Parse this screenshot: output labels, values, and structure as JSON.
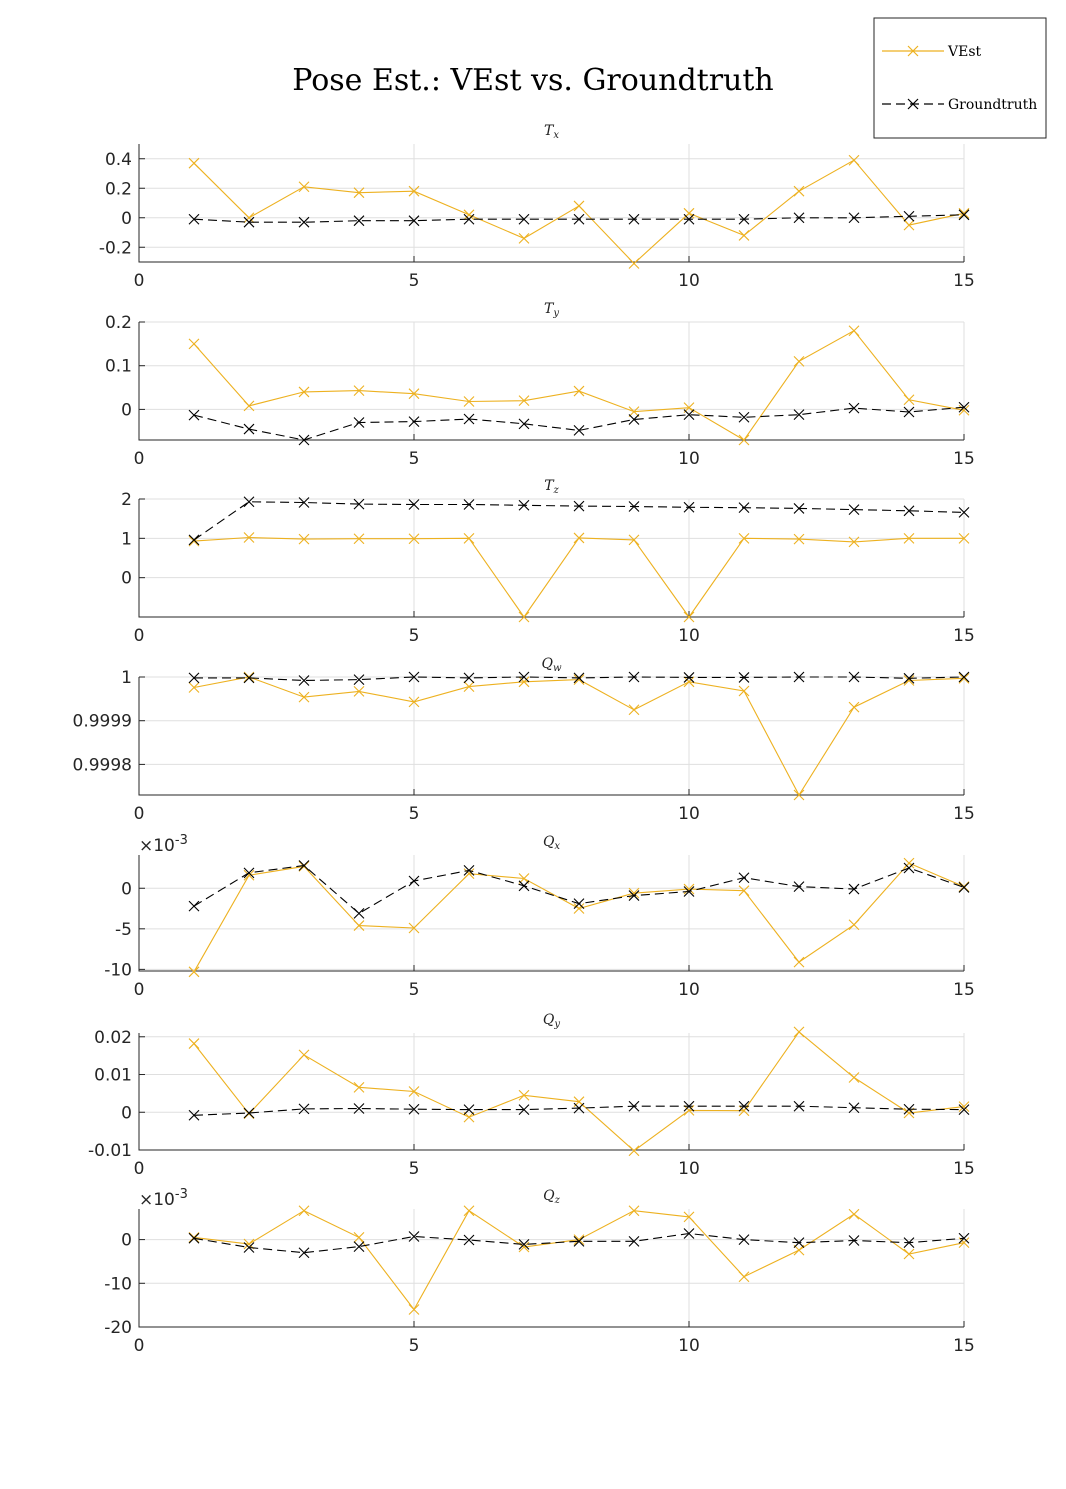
{
  "title": "Pose Est.: VEst vs. Groundtruth",
  "legend": {
    "entries": [
      {
        "label": "VEst",
        "color": "#EDB120",
        "style": "solid"
      },
      {
        "label": "Groundtruth",
        "color": "#000000",
        "style": "dashed"
      }
    ],
    "placement": "top-right"
  },
  "chart_data": [
    {
      "type": "line",
      "title": "T_x",
      "xlim": [
        0,
        15
      ],
      "ylim": [
        -0.3,
        0.5
      ],
      "xticks": [
        0,
        5,
        10,
        15
      ],
      "yticks": [
        -0.2,
        0,
        0.2,
        0.4
      ],
      "yticklabels": [
        "-0.2",
        "0",
        "0.2",
        "0.4"
      ],
      "exponent": "",
      "grid": true,
      "x": [
        1,
        2,
        3,
        4,
        5,
        6,
        7,
        8,
        9,
        10,
        11,
        12,
        13,
        14,
        15
      ],
      "series": [
        {
          "name": "VEst",
          "values": [
            0.37,
            0.0,
            0.21,
            0.17,
            0.18,
            0.02,
            -0.14,
            0.08,
            -0.31,
            0.03,
            -0.12,
            0.18,
            0.39,
            -0.05,
            0.03
          ]
        },
        {
          "name": "Groundtruth",
          "values": [
            -0.01,
            -0.03,
            -0.03,
            -0.02,
            -0.02,
            -0.01,
            -0.01,
            -0.01,
            -0.01,
            -0.01,
            -0.01,
            0.0,
            0.0,
            0.01,
            0.02
          ]
        }
      ]
    },
    {
      "type": "line",
      "title": "T_y",
      "xlim": [
        0,
        15
      ],
      "ylim": [
        -0.07,
        0.2
      ],
      "xticks": [
        0,
        5,
        10,
        15
      ],
      "yticks": [
        0,
        0.1,
        0.2
      ],
      "yticklabels": [
        "0",
        "0.1",
        "0.2"
      ],
      "exponent": "",
      "grid": true,
      "x": [
        1,
        2,
        3,
        4,
        5,
        6,
        7,
        8,
        9,
        10,
        11,
        12,
        13,
        14,
        15
      ],
      "series": [
        {
          "name": "VEst",
          "values": [
            0.15,
            0.008,
            0.04,
            0.043,
            0.036,
            0.018,
            0.02,
            0.042,
            -0.005,
            0.004,
            -0.07,
            0.11,
            0.18,
            0.022,
            -0.002
          ]
        },
        {
          "name": "Groundtruth",
          "values": [
            -0.013,
            -0.045,
            -0.07,
            -0.03,
            -0.028,
            -0.022,
            -0.033,
            -0.048,
            -0.023,
            -0.012,
            -0.018,
            -0.012,
            0.003,
            -0.006,
            0.005
          ]
        }
      ]
    },
    {
      "type": "line",
      "title": "T_z",
      "xlim": [
        0,
        15
      ],
      "ylim": [
        -1,
        2
      ],
      "xticks": [
        0,
        5,
        10,
        15
      ],
      "yticks": [
        0,
        1,
        2
      ],
      "yticklabels": [
        "0",
        "1",
        "2"
      ],
      "exponent": "",
      "grid": true,
      "x": [
        1,
        2,
        3,
        4,
        5,
        6,
        7,
        8,
        9,
        10,
        11,
        12,
        13,
        14,
        15
      ],
      "series": [
        {
          "name": "VEst",
          "values": [
            0.93,
            1.02,
            0.98,
            0.99,
            0.99,
            1.0,
            -1.0,
            1.01,
            0.96,
            -1.0,
            1.0,
            0.98,
            0.91,
            1.0,
            1.0
          ]
        },
        {
          "name": "Groundtruth",
          "values": [
            0.96,
            1.93,
            1.91,
            1.87,
            1.86,
            1.86,
            1.84,
            1.82,
            1.81,
            1.79,
            1.78,
            1.76,
            1.73,
            1.7,
            1.66
          ]
        }
      ]
    },
    {
      "type": "line",
      "title": "Q_w",
      "xlim": [
        0,
        15
      ],
      "ylim": [
        0.99973,
        1.0
      ],
      "xticks": [
        0,
        5,
        10,
        15
      ],
      "yticks": [
        0.9998,
        0.9999,
        1.0
      ],
      "yticklabels": [
        "0.9998",
        "0.9999",
        "1"
      ],
      "exponent": "",
      "grid": true,
      "x": [
        1,
        2,
        3,
        4,
        5,
        6,
        7,
        8,
        9,
        10,
        11,
        12,
        13,
        14,
        15
      ],
      "series": [
        {
          "name": "VEst",
          "values": [
            0.999976,
            1.0,
            0.999954,
            0.999967,
            0.999943,
            0.999978,
            0.999989,
            0.999994,
            0.999925,
            0.999989,
            0.999968,
            0.99973,
            0.999931,
            0.999992,
            0.999997
          ]
        },
        {
          "name": "Groundtruth",
          "values": [
            0.999998,
            0.999998,
            0.999992,
            0.999994,
            1.0,
            0.999998,
            1.0,
            0.999998,
            1.0,
            0.999999,
            0.999999,
            1.0,
            1.0,
            0.999997,
            1.0
          ]
        }
      ]
    },
    {
      "type": "line",
      "title": "Q_x",
      "xlim": [
        0,
        15
      ],
      "ylim": [
        -10.2,
        4.1
      ],
      "xticks": [
        0,
        5,
        10,
        15
      ],
      "yticks": [
        -10,
        -5,
        0
      ],
      "yticklabels": [
        "-10",
        "-5",
        "0"
      ],
      "exponent": "×10",
      "exponent_power": "-3",
      "grid": true,
      "x": [
        1,
        2,
        3,
        4,
        5,
        6,
        7,
        8,
        9,
        10,
        11,
        12,
        13,
        14,
        15
      ],
      "series": [
        {
          "name": "VEst",
          "values": [
            -10.3,
            1.6,
            2.7,
            -4.6,
            -4.9,
            1.8,
            1.2,
            -2.5,
            -0.6,
            -0.1,
            -0.3,
            -9.1,
            -4.5,
            3.1,
            0.2
          ]
        },
        {
          "name": "Groundtruth",
          "values": [
            -2.2,
            1.9,
            2.8,
            -3.1,
            0.9,
            2.2,
            0.3,
            -1.9,
            -0.9,
            -0.4,
            1.3,
            0.2,
            -0.1,
            2.5,
            0.1
          ]
        }
      ]
    },
    {
      "type": "line",
      "title": "Q_y",
      "xlim": [
        0,
        15
      ],
      "ylim": [
        -0.01,
        0.021
      ],
      "xticks": [
        0,
        5,
        10,
        15
      ],
      "yticks": [
        -0.01,
        0,
        0.01,
        0.02
      ],
      "yticklabels": [
        "-0.01",
        "0",
        "0.01",
        "0.02"
      ],
      "exponent": "",
      "grid": true,
      "x": [
        1,
        2,
        3,
        4,
        5,
        6,
        7,
        8,
        9,
        10,
        11,
        12,
        13,
        14,
        15
      ],
      "series": [
        {
          "name": "VEst",
          "values": [
            0.0182,
            -0.0004,
            0.0152,
            0.0066,
            0.0055,
            -0.0013,
            0.0045,
            0.0028,
            -0.0102,
            0.0005,
            0.0004,
            0.0213,
            0.0092,
            -0.0002,
            0.0015
          ]
        },
        {
          "name": "Groundtruth",
          "values": [
            -0.0008,
            -0.0002,
            0.0009,
            0.001,
            0.0008,
            0.0007,
            0.0007,
            0.0011,
            0.0016,
            0.0016,
            0.0016,
            0.0016,
            0.0012,
            0.0008,
            0.0007
          ]
        }
      ]
    },
    {
      "type": "line",
      "title": "Q_z",
      "xlim": [
        0,
        15
      ],
      "ylim": [
        -20,
        7
      ],
      "xticks": [
        0,
        5,
        10,
        15
      ],
      "yticks": [
        -20,
        -10,
        0
      ],
      "yticklabels": [
        "-20",
        "-10",
        "0"
      ],
      "exponent": "×10",
      "exponent_power": "-3",
      "grid": true,
      "x": [
        1,
        2,
        3,
        4,
        5,
        6,
        7,
        8,
        9,
        10,
        11,
        12,
        13,
        14,
        15
      ],
      "series": [
        {
          "name": "VEst",
          "values": [
            0.5,
            -1.0,
            6.6,
            0.5,
            -16.0,
            6.6,
            -1.7,
            0.0,
            6.6,
            5.2,
            -8.5,
            -2.4,
            5.8,
            -3.3,
            -0.7
          ]
        },
        {
          "name": "Groundtruth",
          "values": [
            0.3,
            -1.8,
            -3.0,
            -1.6,
            0.7,
            -0.1,
            -1.1,
            -0.4,
            -0.4,
            1.4,
            0.0,
            -0.7,
            -0.2,
            -0.7,
            0.3
          ]
        }
      ]
    }
  ]
}
